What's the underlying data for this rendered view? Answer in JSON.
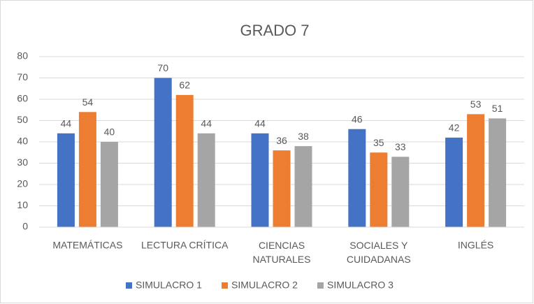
{
  "chart_data": {
    "type": "bar",
    "title": "GRADO 7",
    "categories": [
      "MATEMÁTICAS",
      "LECTURA CRÍTICA",
      "CIENCIAS NATURALES",
      "SOCIALES Y CUIDADANAS",
      "INGLÉS"
    ],
    "series": [
      {
        "name": "SIMULACRO 1",
        "color": "#4472c4",
        "values": [
          44,
          70,
          44,
          46,
          42
        ]
      },
      {
        "name": "SIMULACRO 2",
        "color": "#ed7d31",
        "values": [
          54,
          62,
          36,
          35,
          53
        ]
      },
      {
        "name": "SIMULACRO 3",
        "color": "#a5a5a5",
        "values": [
          40,
          44,
          38,
          33,
          51
        ]
      }
    ],
    "ylim": [
      0,
      80
    ],
    "yticks": [
      0,
      10,
      20,
      30,
      40,
      50,
      60,
      70,
      80
    ],
    "grid": true,
    "legend": "bottom"
  }
}
